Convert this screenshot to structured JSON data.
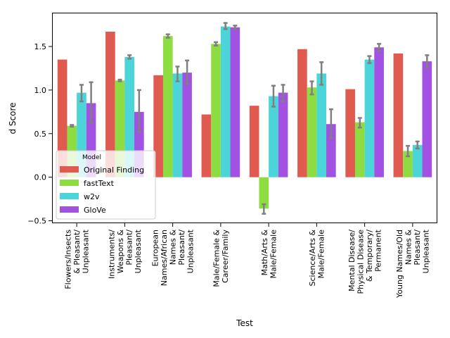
{
  "chart_data": {
    "type": "bar",
    "xlabel": "Test",
    "ylabel": "d Score",
    "ylim": [
      -0.52,
      1.88
    ],
    "yticks": [
      -0.5,
      0.0,
      0.5,
      1.0,
      1.5
    ],
    "ytick_labels": [
      "−0.5",
      "0.0",
      "0.5",
      "1.0",
      "1.5"
    ],
    "categories": [
      [
        "Flowers/Insects",
        "& Pleasant/",
        "Unpleasant"
      ],
      [
        "Instruments/",
        "Weapons &",
        "Pleasant/",
        "Unpleasant"
      ],
      [
        "European",
        "Names/African",
        "Names &",
        "Pleasant/",
        "Unpleasant"
      ],
      [
        "Male/Female &",
        "Career/Family"
      ],
      [
        "Math/Arts &",
        "Male/Female"
      ],
      [
        "Science/Arts &",
        "Male/Female"
      ],
      [
        "Mental Disease/",
        "Physical Disease",
        "& Temporary/",
        "Permanent"
      ],
      [
        "Young Names/Old",
        "Names &",
        "Pleasant/",
        "Unpleasant"
      ]
    ],
    "legend_title": "Model",
    "legend_position": "lower-left",
    "series": [
      {
        "name": "Original Finding",
        "color": "#e05a4f",
        "values": [
          1.35,
          1.67,
          1.17,
          0.72,
          0.82,
          1.47,
          1.01,
          1.42
        ],
        "err": [
          null,
          null,
          null,
          null,
          null,
          null,
          null,
          null
        ]
      },
      {
        "name": "fastText",
        "color": "#8ddc42",
        "values": [
          0.59,
          1.11,
          1.62,
          1.53,
          -0.36,
          1.03,
          0.63,
          0.3
        ],
        "err": [
          [
            0.58,
            0.6
          ],
          [
            1.1,
            1.12
          ],
          [
            1.6,
            1.64
          ],
          [
            1.51,
            1.55
          ],
          [
            -0.42,
            -0.31
          ],
          [
            0.95,
            1.1
          ],
          [
            0.57,
            0.68
          ],
          [
            0.24,
            0.36
          ]
        ]
      },
      {
        "name": "w2v",
        "color": "#4cd5d8",
        "values": [
          0.97,
          1.38,
          1.19,
          1.73,
          0.93,
          1.19,
          1.35,
          0.37
        ],
        "err": [
          [
            0.87,
            1.06
          ],
          [
            1.36,
            1.4
          ],
          [
            1.1,
            1.27
          ],
          [
            1.7,
            1.77
          ],
          [
            0.81,
            1.05
          ],
          [
            1.06,
            1.32
          ],
          [
            1.31,
            1.39
          ],
          [
            0.33,
            0.41
          ]
        ]
      },
      {
        "name": "GloVe",
        "color": "#a252e2",
        "values": [
          0.85,
          0.75,
          1.2,
          1.72,
          0.97,
          0.61,
          1.49,
          1.33
        ],
        "err": [
          [
            0.62,
            1.09
          ],
          [
            0.52,
            1.0
          ],
          [
            1.07,
            1.34
          ],
          [
            1.7,
            1.74
          ],
          [
            0.87,
            1.06
          ],
          [
            0.45,
            0.78
          ],
          [
            1.45,
            1.53
          ],
          [
            1.26,
            1.4
          ]
        ]
      }
    ]
  }
}
